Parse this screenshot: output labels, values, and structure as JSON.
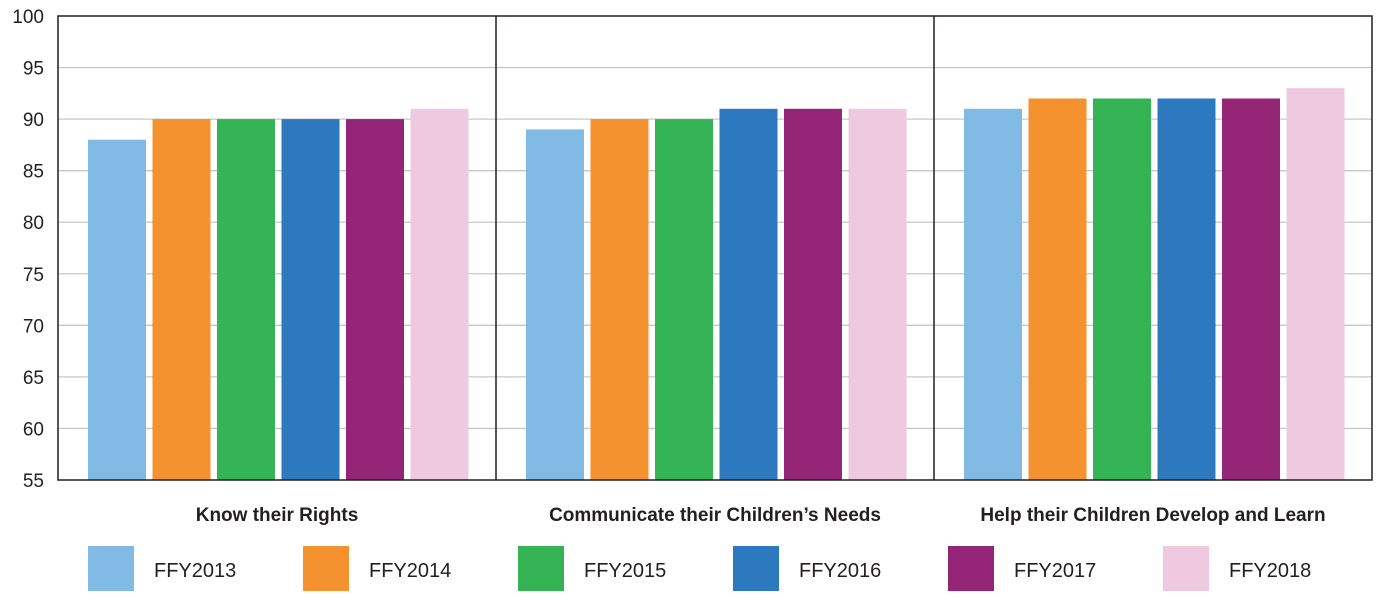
{
  "chart_data": {
    "type": "bar",
    "title": "",
    "xlabel": "",
    "ylabel": "",
    "ylim": [
      55,
      100
    ],
    "yticks": [
      55,
      60,
      65,
      70,
      75,
      80,
      85,
      90,
      95,
      100
    ],
    "grid": true,
    "legend_position": "bottom",
    "categories": [
      "Know their Rights",
      "Communicate their Children’s Needs",
      "Help their Children Develop and Learn"
    ],
    "series": [
      {
        "name": "FFY2013",
        "color": "#82bae6",
        "values": [
          88,
          89,
          91
        ]
      },
      {
        "name": "FFY2014",
        "color": "#f4922f",
        "values": [
          90,
          90,
          92
        ]
      },
      {
        "name": "FFY2015",
        "color": "#35b455",
        "values": [
          90,
          90,
          92
        ]
      },
      {
        "name": "FFY2016",
        "color": "#2c79bf",
        "values": [
          90,
          91,
          92
        ]
      },
      {
        "name": "FFY2017",
        "color": "#952576",
        "values": [
          90,
          91,
          92
        ]
      },
      {
        "name": "FFY2018",
        "color": "#efc9e0",
        "values": [
          91,
          91,
          93
        ]
      }
    ]
  }
}
